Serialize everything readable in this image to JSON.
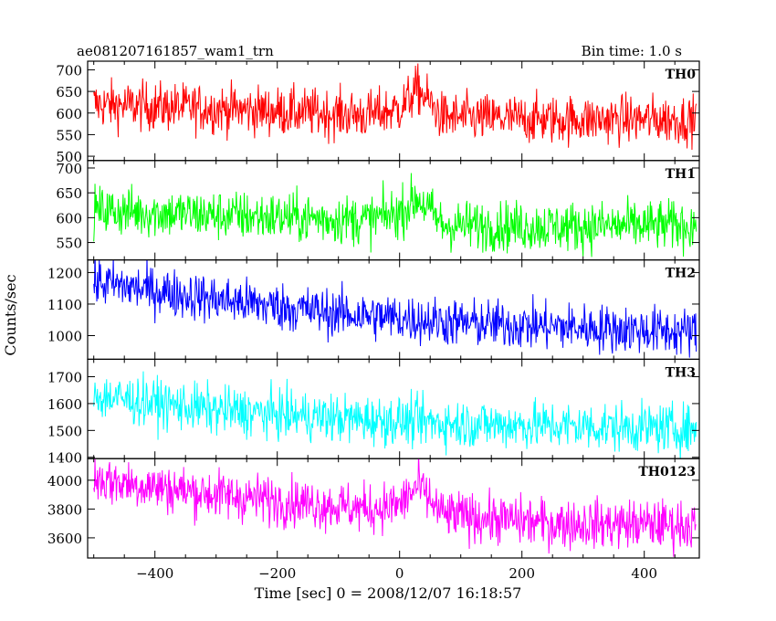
{
  "header": {
    "title": "ae081207161857_wam1_trn",
    "bin_time": "Bin time: 1.0 s"
  },
  "axes": {
    "ylabel": "Counts/sec",
    "xlabel": "Time [sec] 0 = 2008/12/07 16:18:57"
  },
  "chart_data": {
    "type": "line",
    "title": "ae081207161857_wam1_trn",
    "xlabel": "Time [sec] 0 = 2008/12/07 16:18:57",
    "ylabel": "Counts/sec",
    "bin_time_s": 1.0,
    "xlim": [
      -510,
      490
    ],
    "x_range": [
      -500,
      485
    ],
    "xticks": [
      -400,
      -200,
      0,
      200,
      400
    ],
    "xtick_labels": [
      "−400",
      "−200",
      "0",
      "200",
      "400"
    ],
    "panels": [
      {
        "name": "TH0",
        "color": "#ff0000",
        "ylim": [
          490,
          720
        ],
        "yticks": [
          500,
          550,
          600,
          650,
          700
        ],
        "ytick_labels": [
          "500",
          "550",
          "600",
          "650",
          "700"
        ],
        "profile": [
          [
            -500,
            620
          ],
          [
            -300,
            610
          ],
          [
            -50,
            595
          ],
          [
            0,
            610
          ],
          [
            30,
            655
          ],
          [
            70,
            590
          ],
          [
            250,
            585
          ],
          [
            485,
            585
          ]
        ],
        "noise": 28
      },
      {
        "name": "TH1",
        "color": "#00ff00",
        "ylim": [
          515,
          715
        ],
        "yticks": [
          550,
          600,
          650,
          700
        ],
        "ytick_labels": [
          "550",
          "600",
          "650",
          "700"
        ],
        "profile": [
          [
            -500,
            615
          ],
          [
            -300,
            605
          ],
          [
            -50,
            595
          ],
          [
            0,
            610
          ],
          [
            30,
            640
          ],
          [
            70,
            585
          ],
          [
            250,
            582
          ],
          [
            485,
            585
          ]
        ],
        "noise": 25
      },
      {
        "name": "TH2",
        "color": "#0000ff",
        "ylim": [
          925,
          1240
        ],
        "yticks": [
          1000,
          1100,
          1200
        ],
        "ytick_labels": [
          "1000",
          "1100",
          "1200"
        ],
        "profile": [
          [
            -500,
            1170
          ],
          [
            -300,
            1115
          ],
          [
            -100,
            1070
          ],
          [
            100,
            1040
          ],
          [
            300,
            1025
          ],
          [
            485,
            1010
          ]
        ],
        "noise": 38
      },
      {
        "name": "TH3",
        "color": "#00ffff",
        "ylim": [
          1395,
          1765
        ],
        "yticks": [
          1400,
          1500,
          1600,
          1700
        ],
        "ytick_labels": [
          "1400",
          "1500",
          "1600",
          "1700"
        ],
        "profile": [
          [
            -500,
            1630
          ],
          [
            -300,
            1575
          ],
          [
            -100,
            1545
          ],
          [
            100,
            1525
          ],
          [
            300,
            1515
          ],
          [
            485,
            1505
          ]
        ],
        "noise": 45
      },
      {
        "name": "TH0123",
        "color": "#ff00ff",
        "ylim": [
          3460,
          4150
        ],
        "yticks": [
          3600,
          3800,
          4000
        ],
        "ytick_labels": [
          "3600",
          "3800",
          "4000"
        ],
        "profile": [
          [
            -500,
            4010
          ],
          [
            -300,
            3900
          ],
          [
            -50,
            3800
          ],
          [
            0,
            3830
          ],
          [
            30,
            3960
          ],
          [
            70,
            3760
          ],
          [
            250,
            3700
          ],
          [
            485,
            3690
          ]
        ],
        "noise": 85
      }
    ]
  }
}
